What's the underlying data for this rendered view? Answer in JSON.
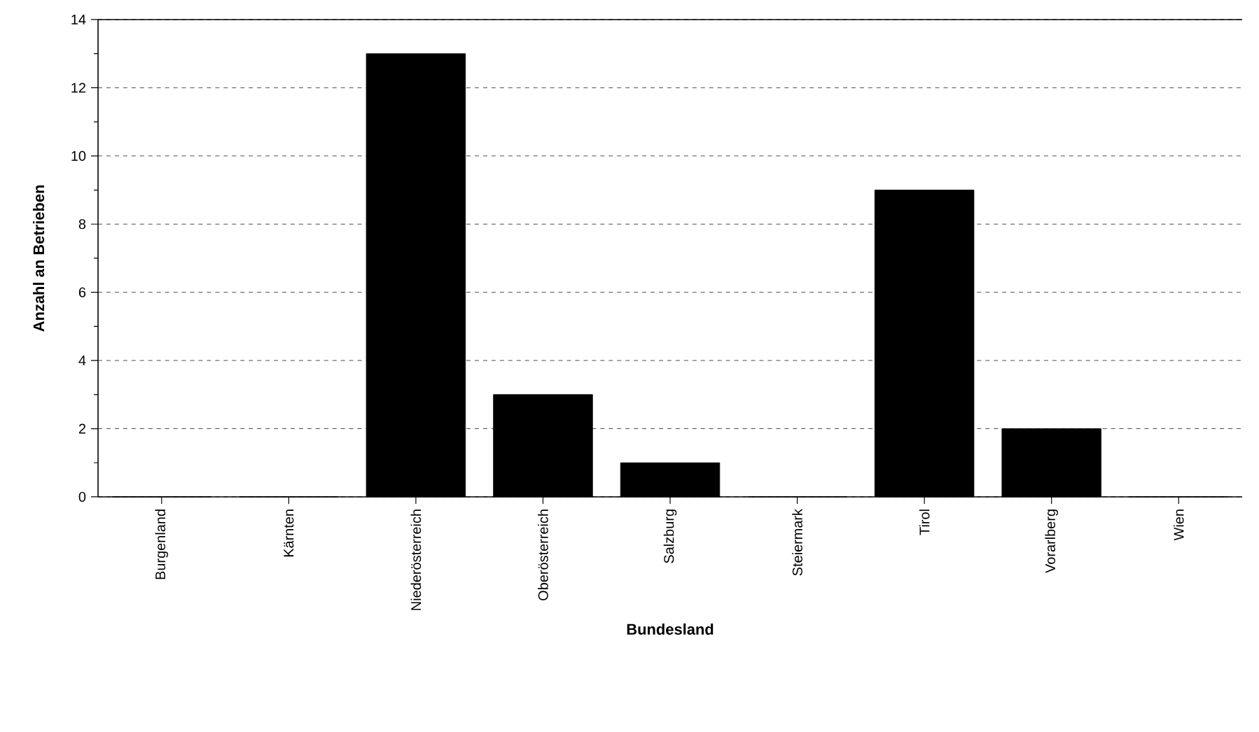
{
  "chart_data": {
    "type": "bar",
    "xlabel": "Bundesland",
    "ylabel": "Anzahl an Betrieben",
    "categories": [
      "Burgenland",
      "Kärnten",
      "Niederösterreich",
      "Oberösterreich",
      "Salzburg",
      "Steiermark",
      "Tirol",
      "Vorarlberg",
      "Wien"
    ],
    "values": [
      0,
      0,
      13,
      3,
      1,
      0,
      9,
      2,
      0
    ],
    "color": "#000000",
    "ylim": [
      0,
      14
    ],
    "yticks": [
      0,
      2,
      4,
      6,
      8,
      10,
      12,
      14
    ],
    "grid": "y"
  }
}
